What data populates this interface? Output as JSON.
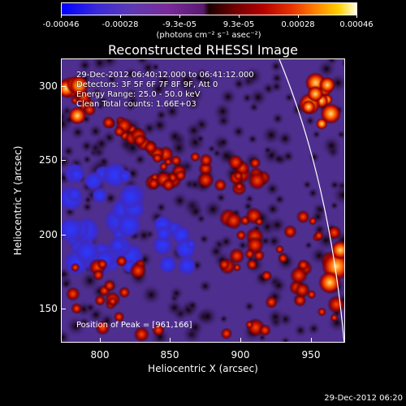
{
  "colorbar": {
    "tick_labels": [
      "-0.00046",
      "-0.00028",
      "-9.3e-05",
      "9.3e-05",
      "0.00028",
      "0.00046"
    ],
    "units": "(photons cm⁻² s⁻¹ asec⁻²)"
  },
  "plot": {
    "title": "Reconstructed RHESSI Image",
    "xlabel": "Heliocentric X (arcsec)",
    "ylabel": "Heliocentric Y (arcsec)",
    "xticks": [
      "800",
      "850",
      "900",
      "950"
    ],
    "yticks": [
      "300",
      "250",
      "200",
      "150"
    ],
    "info": {
      "time_range": "29-Dec-2012 06:40:12.000 to 06:41:12.000",
      "detectors": "Detectors: 3F 5F 6F 7F 8F 9F, Att 0",
      "energy": "Energy Range: 25.0 - 50.0 keV",
      "clean": "Clean    Total counts: 1.66E+03"
    },
    "peak": "Position of Peak = [961,166]"
  },
  "footer": {
    "timestamp": "29-Dec-2012 06:20"
  }
}
